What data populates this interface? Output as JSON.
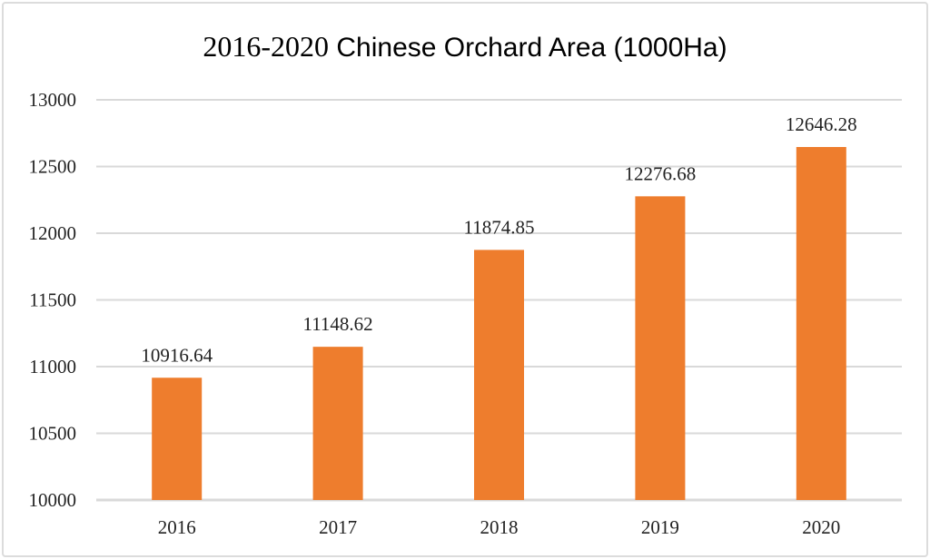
{
  "chart_data": {
    "type": "bar",
    "title_years": "2016-2020",
    "title_rest": " Chinese Orchard Area (1000Ha)",
    "title": "2016-2020 Chinese Orchard Area (1000Ha)",
    "categories": [
      "2016",
      "2017",
      "2018",
      "2019",
      "2020"
    ],
    "values": [
      10916.64,
      11148.62,
      11874.85,
      12276.68,
      12646.28
    ],
    "data_labels": [
      "10916.64",
      "11148.62",
      "11874.85",
      "12276.68",
      "12646.28"
    ],
    "yticks": [
      "10000",
      "10500",
      "11000",
      "11500",
      "12000",
      "12500",
      "13000"
    ],
    "ylim": [
      10000,
      13000
    ],
    "xlabel": "",
    "ylabel": "",
    "grid": true,
    "legend": "none",
    "bar_color": "#EE7D2D"
  }
}
